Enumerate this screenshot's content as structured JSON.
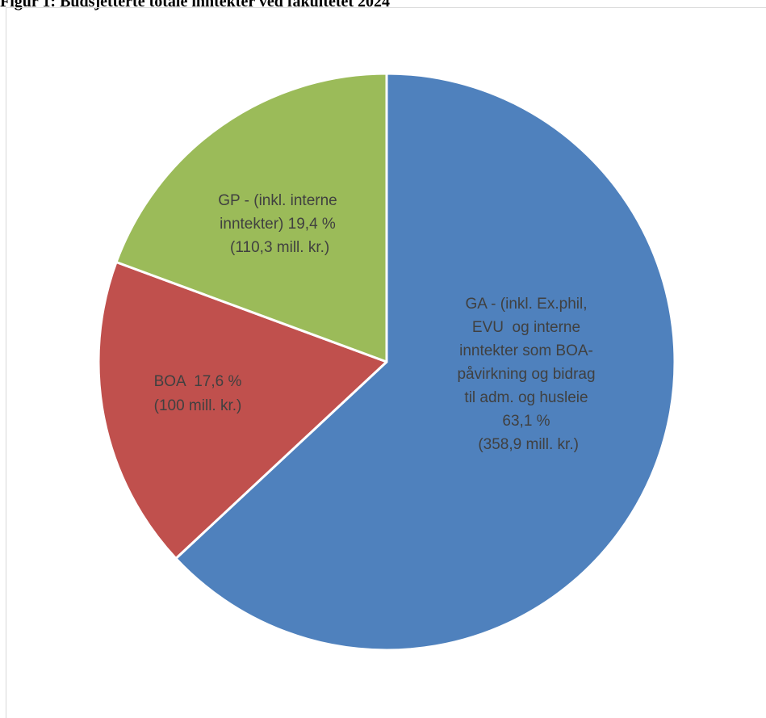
{
  "figure": {
    "title": "Figur 1: Budsjetterte totale inntekter ved fakultetet 2024"
  },
  "chart_data": {
    "type": "pie",
    "title": "Figur 1: Budsjetterte totale inntekter ved fakultetet 2024",
    "start_angle_deg": 0,
    "direction": "clockwise",
    "slices": [
      {
        "key": "GA",
        "value": 358.9,
        "percent": 63.1,
        "color": "#4f81bd",
        "label_lines": [
          "GA - (inkl. Ex.phil,",
          "EVU  og interne",
          "inntekter som BOA-",
          "påvirkning og bidrag",
          "til adm. og husleie",
          "63,1 %",
          " (358,9 mill. kr.)"
        ]
      },
      {
        "key": "BOA",
        "value": 100,
        "percent": 17.6,
        "color": "#c0504d",
        "label_lines": [
          "BOA  17,6 %",
          "(100 mill. kr.)"
        ]
      },
      {
        "key": "GP",
        "value": 110.3,
        "percent": 19.4,
        "color": "#9bbb59",
        "label_lines": [
          "GP - (inkl. interne",
          "inntekter) 19,4 %",
          " (110,3 mill. kr.)"
        ]
      }
    ]
  }
}
